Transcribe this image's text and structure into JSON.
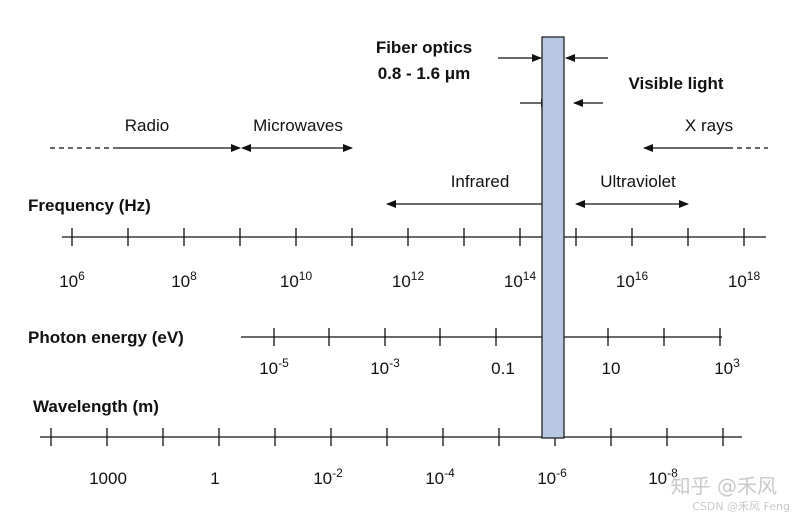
{
  "fiber": {
    "title": "Fiber optics",
    "range": "0.8 - 1.6 μm",
    "band_color": "#b8c8e3"
  },
  "visible_label": "Visible light",
  "bands": {
    "radio": "Radio",
    "microwaves": "Microwaves",
    "infrared": "Infrared",
    "ultraviolet": "Ultraviolet",
    "xrays": "X rays"
  },
  "axes": {
    "frequency": {
      "label": "Frequency (Hz)",
      "ticks": [
        {
          "base": "10",
          "exp": "6"
        },
        {
          "base": "10",
          "exp": "8"
        },
        {
          "base": "10",
          "exp": "10"
        },
        {
          "base": "10",
          "exp": "12"
        },
        {
          "base": "10",
          "exp": "14"
        },
        {
          "base": "10",
          "exp": "16"
        },
        {
          "base": "10",
          "exp": "18"
        }
      ]
    },
    "photon": {
      "label": "Photon energy (eV)",
      "ticks": [
        {
          "base": "10",
          "exp": "-5"
        },
        {
          "base": "10",
          "exp": "-3"
        },
        {
          "base": "0.1",
          "exp": ""
        },
        {
          "base": "10",
          "exp": ""
        },
        {
          "base": "10",
          "exp": "3"
        }
      ]
    },
    "wavelength": {
      "label": "Wavelength (m)",
      "ticks": [
        {
          "base": "1000",
          "exp": ""
        },
        {
          "base": "1",
          "exp": ""
        },
        {
          "base": "10",
          "exp": "-2"
        },
        {
          "base": "10",
          "exp": "-4"
        },
        {
          "base": "10",
          "exp": "-6"
        },
        {
          "base": "10",
          "exp": "-8"
        }
      ]
    }
  },
  "watermark": {
    "main": "知乎 @禾风",
    "sub": "CSDN @禾风 Feng"
  }
}
